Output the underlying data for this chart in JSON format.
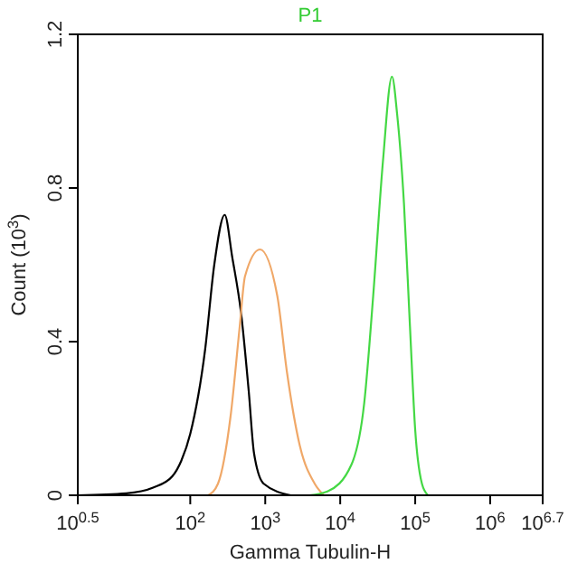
{
  "chart_data": {
    "type": "line",
    "title": "P1",
    "xlabel": "Gamma Tubulin-H",
    "ylabel": "Count (10$^{3}$)",
    "log": "x",
    "xlim": [
      3.162,
      5011872
    ],
    "xticks": [
      {
        "value": 3.162,
        "label": "10$^{0.5}$"
      },
      {
        "value": 100,
        "label": "10$^{2}$"
      },
      {
        "value": 1000,
        "label": "10$^{3}$"
      },
      {
        "value": 10000,
        "label": "10$^{4}$"
      },
      {
        "value": 100000,
        "label": "10$^{5}$"
      },
      {
        "value": 1000000,
        "label": "10$^{6}$"
      },
      {
        "value": 5011872,
        "label": "10$^{6.7}$"
      }
    ],
    "ylim": [
      0,
      1.2
    ],
    "yticks": [
      0,
      0.4,
      0.8,
      1.2
    ],
    "grid": false,
    "marker": "none",
    "line_style": "solid",
    "series": [
      {
        "color": "#000000",
        "x": [
          3.2,
          14,
          32,
          58,
          76,
          100,
          158,
          209,
          288,
          363,
          479,
          603,
          708,
          955,
          2188
        ],
        "values": [
          0,
          0.005,
          0.02,
          0.05,
          0.09,
          0.16,
          0.38,
          0.6,
          0.73,
          0.62,
          0.47,
          0.27,
          0.11,
          0.03,
          0
        ]
      },
      {
        "color": "#f0a868",
        "x": [
          174,
          234,
          347,
          457,
          537,
          851,
          1445,
          1950,
          2884,
          4571,
          6026
        ],
        "values": [
          0,
          0.03,
          0.21,
          0.44,
          0.57,
          0.64,
          0.52,
          0.32,
          0.13,
          0.03,
          0
        ]
      },
      {
        "color": "#44d844",
        "x": [
          3890,
          6761,
          14125,
          20893,
          27542,
          37154,
          48978,
          57544,
          70795,
          85114,
          100000,
          123027,
          147911
        ],
        "values": [
          0,
          0.01,
          0.08,
          0.24,
          0.52,
          0.87,
          1.09,
          0.99,
          0.76,
          0.44,
          0.17,
          0.03,
          0
        ]
      }
    ]
  }
}
